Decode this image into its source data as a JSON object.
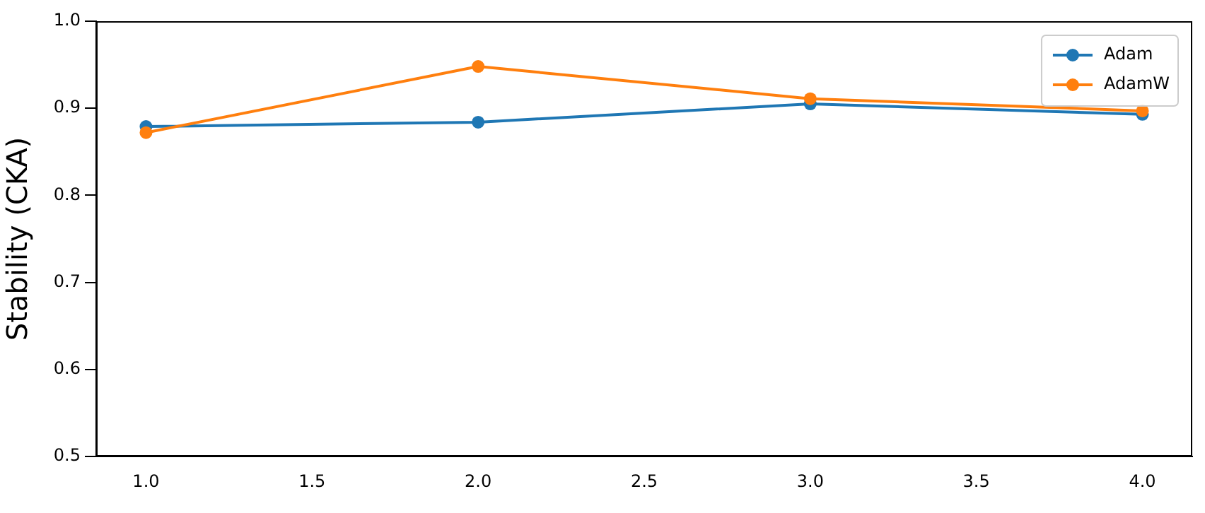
{
  "chart_data": {
    "type": "line",
    "ylabel": "Stability (CKA)",
    "x": [
      1,
      2,
      3,
      4
    ],
    "series": [
      {
        "name": "Adam",
        "color": "#1f77b4",
        "values": [
          0.879,
          0.884,
          0.905,
          0.893
        ]
      },
      {
        "name": "AdamW",
        "color": "#ff7f0e",
        "values": [
          0.872,
          0.948,
          0.911,
          0.897
        ]
      }
    ],
    "xlim": [
      0.85,
      4.15
    ],
    "xticks": [
      {
        "value": 1,
        "label": "1.0"
      },
      {
        "value": 1.5,
        "label": "1.5"
      },
      {
        "value": 2,
        "label": "2.0"
      },
      {
        "value": 2.5,
        "label": "2.5"
      },
      {
        "value": 3,
        "label": "3.0"
      },
      {
        "value": 3.5,
        "label": "3.5"
      },
      {
        "value": 4,
        "label": "4.0"
      }
    ],
    "ylim": [
      0.5,
      1.0
    ],
    "yticks": [
      {
        "value": 0.5,
        "label": "0.5"
      },
      {
        "value": 0.6,
        "label": "0.6"
      },
      {
        "value": 0.7,
        "label": "0.7"
      },
      {
        "value": 0.8,
        "label": "0.8"
      },
      {
        "value": 0.9,
        "label": "0.9"
      },
      {
        "value": 1.0,
        "label": "1.0"
      }
    ],
    "grid": false,
    "legend": "top right",
    "marker": "circle",
    "line_style": "solid"
  }
}
